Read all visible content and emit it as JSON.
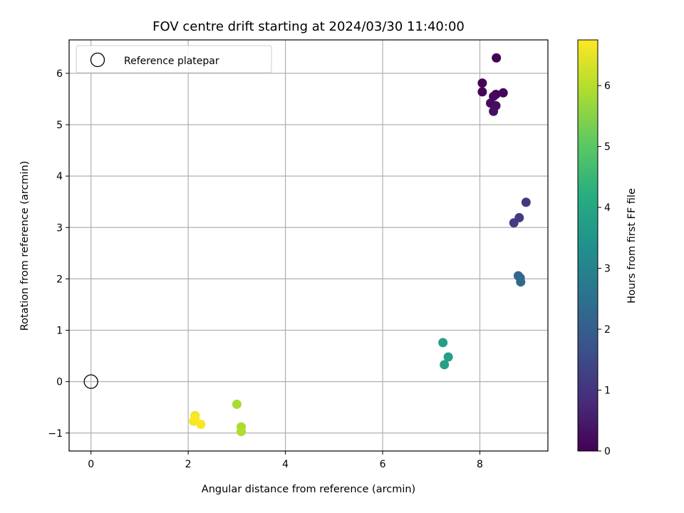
{
  "chart_data": {
    "type": "scatter",
    "title": "FOV centre drift starting at 2024/03/30 11:40:00",
    "xlabel": "Angular distance from reference (arcmin)",
    "ylabel": "Rotation from reference (arcmin)",
    "xlim": [
      -0.45,
      9.4
    ],
    "ylim": [
      -1.35,
      6.65
    ],
    "xticks": [
      0,
      2,
      4,
      6,
      8
    ],
    "yticks": [
      -1,
      0,
      1,
      2,
      3,
      4,
      5,
      6
    ],
    "xtick_labels": [
      "0",
      "2",
      "4",
      "6",
      "8"
    ],
    "ytick_labels": [
      "−1",
      "0",
      "1",
      "2",
      "3",
      "4",
      "5",
      "6"
    ],
    "grid": true,
    "legend": {
      "position": "top-left",
      "entries": [
        "Reference platepar"
      ]
    },
    "reference": {
      "name": "Reference platepar",
      "x": 0,
      "y": 0
    },
    "colorbar": {
      "label": "Hours from first FF file",
      "min": 0,
      "max": 6.75,
      "ticks": [
        0,
        1,
        2,
        3,
        4,
        5,
        6
      ],
      "tick_labels": [
        "0",
        "1",
        "2",
        "3",
        "4",
        "5",
        "6"
      ],
      "colormap": "viridis"
    },
    "points": [
      {
        "x": 8.34,
        "y": 6.3,
        "hours": 0.0
      },
      {
        "x": 8.05,
        "y": 5.81,
        "hours": 0.05
      },
      {
        "x": 8.05,
        "y": 5.64,
        "hours": 0.08
      },
      {
        "x": 8.48,
        "y": 5.62,
        "hours": 0.1
      },
      {
        "x": 8.33,
        "y": 5.59,
        "hours": 0.12
      },
      {
        "x": 8.28,
        "y": 5.55,
        "hours": 0.15
      },
      {
        "x": 8.22,
        "y": 5.42,
        "hours": 0.2
      },
      {
        "x": 8.33,
        "y": 5.37,
        "hours": 0.25
      },
      {
        "x": 8.28,
        "y": 5.26,
        "hours": 0.3
      },
      {
        "x": 8.95,
        "y": 3.49,
        "hours": 1.1
      },
      {
        "x": 8.81,
        "y": 3.19,
        "hours": 1.15
      },
      {
        "x": 8.7,
        "y": 3.09,
        "hours": 1.2
      },
      {
        "x": 8.79,
        "y": 2.06,
        "hours": 2.2
      },
      {
        "x": 8.83,
        "y": 2.02,
        "hours": 2.25
      },
      {
        "x": 8.84,
        "y": 1.94,
        "hours": 2.3
      },
      {
        "x": 7.24,
        "y": 0.76,
        "hours": 3.75
      },
      {
        "x": 7.35,
        "y": 0.48,
        "hours": 3.8
      },
      {
        "x": 7.27,
        "y": 0.33,
        "hours": 3.85
      },
      {
        "x": 3.0,
        "y": -0.44,
        "hours": 5.85
      },
      {
        "x": 3.09,
        "y": -0.88,
        "hours": 5.9
      },
      {
        "x": 3.09,
        "y": -0.97,
        "hours": 5.95
      },
      {
        "x": 2.14,
        "y": -0.66,
        "hours": 6.6
      },
      {
        "x": 2.11,
        "y": -0.77,
        "hours": 6.65
      },
      {
        "x": 2.26,
        "y": -0.83,
        "hours": 6.7
      },
      {
        "x": 2.14,
        "y": -0.71,
        "hours": 6.75
      }
    ]
  }
}
